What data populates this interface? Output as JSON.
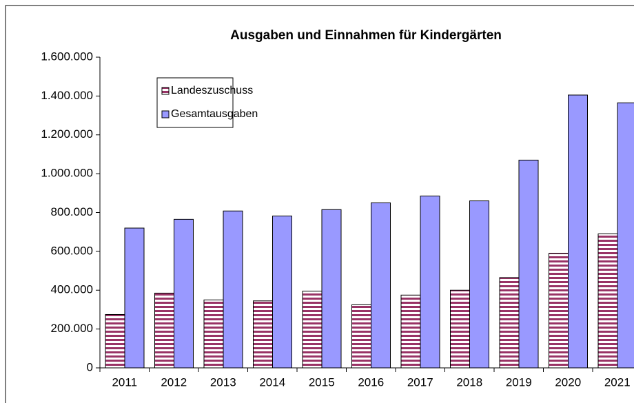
{
  "chart_data": {
    "type": "bar",
    "title": "Ausgaben und Einnahmen für Kindergärten",
    "categories": [
      "2011",
      "2012",
      "2013",
      "2014",
      "2015",
      "2016",
      "2017",
      "2018",
      "2019",
      "2020",
      "2021"
    ],
    "series": [
      {
        "name": "Landeszuschuss",
        "color": "#993366",
        "values": [
          275000,
          385000,
          350000,
          345000,
          395000,
          325000,
          375000,
          400000,
          465000,
          590000,
          690000
        ]
      },
      {
        "name": "Gesamtausgaben",
        "color": "#9999ff",
        "values": [
          720000,
          765000,
          808000,
          782000,
          815000,
          850000,
          885000,
          860000,
          1070000,
          1405000,
          1365000
        ]
      }
    ],
    "ylim": [
      0,
      1600000
    ],
    "yticks": [
      0,
      {
        "value": 200000,
        "label": "200.000"
      },
      {
        "value": 400000,
        "label": "400.000"
      },
      {
        "value": 600000,
        "label": "600.000"
      },
      {
        "value": 800000,
        "label": "800.000"
      },
      {
        "value": 1000000,
        "label": "1.000.000"
      },
      {
        "value": 1200000,
        "label": "1.200.000"
      },
      {
        "value": 1400000,
        "label": "1.400.000"
      },
      {
        "value": 1600000,
        "label": "1.600.000"
      }
    ],
    "legend": "upper left"
  }
}
